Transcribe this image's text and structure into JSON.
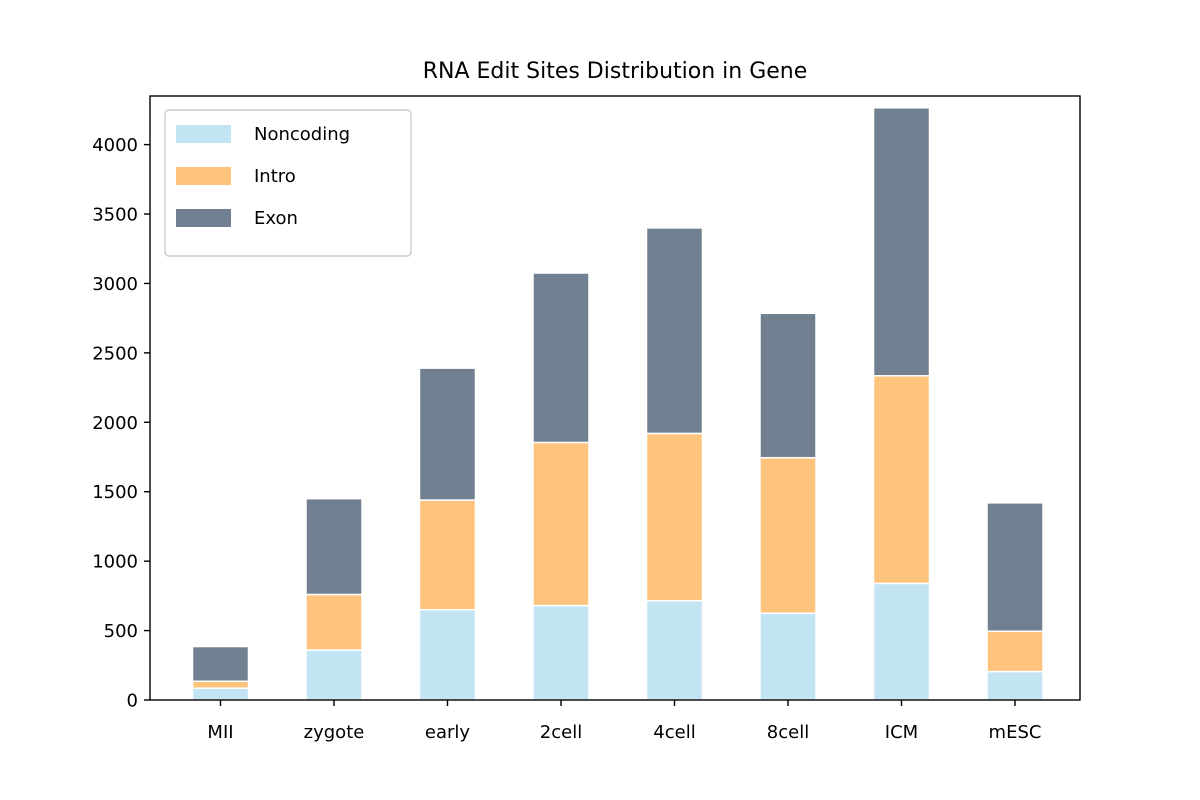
{
  "chart_data": {
    "type": "bar",
    "stacked": true,
    "title": "RNA Edit Sites Distribution in Gene",
    "xlabel": "",
    "ylabel": "",
    "categories": [
      "MII",
      "zygote",
      "early",
      "2cell",
      "4cell",
      "8cell",
      "ICM",
      "mESC"
    ],
    "series": [
      {
        "name": "Noncoding",
        "color": "#c3e4f3",
        "values": [
          85,
          360,
          650,
          680,
          715,
          625,
          840,
          205
        ]
      },
      {
        "name": "Intro",
        "color": "#fec37c",
        "values": [
          50,
          400,
          790,
          1175,
          1205,
          1120,
          1495,
          290
        ]
      },
      {
        "name": "Exon",
        "color": "#708090",
        "values": [
          250,
          690,
          950,
          1220,
          1480,
          1040,
          1930,
          925
        ]
      }
    ],
    "ylim": [
      0,
      4350
    ],
    "yticks": [
      0,
      500,
      1000,
      1500,
      2000,
      2500,
      3000,
      3500,
      4000
    ],
    "grid": false,
    "legend_position": "top-left"
  }
}
